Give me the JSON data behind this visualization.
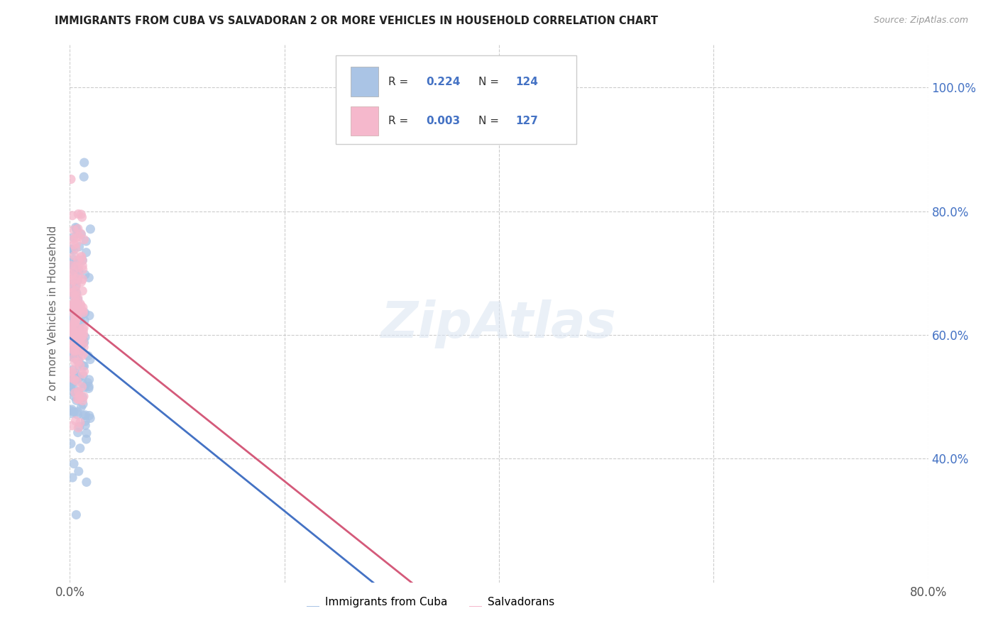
{
  "title": "IMMIGRANTS FROM CUBA VS SALVADORAN 2 OR MORE VEHICLES IN HOUSEHOLD CORRELATION CHART",
  "source": "Source: ZipAtlas.com",
  "ylabel": "2 or more Vehicles in Household",
  "x_min": 0.0,
  "x_max": 0.8,
  "y_min": 0.2,
  "y_max": 1.07,
  "color_cuba": "#aac4e5",
  "color_salvadoran": "#f5b8cc",
  "color_line_cuba": "#4472c4",
  "color_line_salvadoran": "#d45a7a",
  "color_axis_right": "#4472c4",
  "background": "#ffffff",
  "legend_r1_label": "R = ",
  "legend_r1_val": "0.224",
  "legend_n1_label": "  N = ",
  "legend_n1_val": "124",
  "legend_r2_label": "R = ",
  "legend_r2_val": "0.003",
  "legend_n2_label": "  N = ",
  "legend_n2_val": "127",
  "bottom_legend1": "Immigrants from Cuba",
  "bottom_legend2": "Salvadorans",
  "cuba_seed": 42,
  "salv_seed": 99,
  "n_cuba": 124,
  "n_salv": 127
}
